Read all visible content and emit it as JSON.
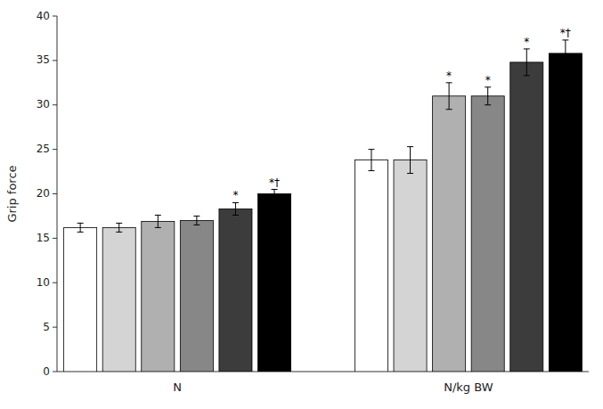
{
  "chart_data": {
    "type": "bar",
    "ylabel": "Grip force",
    "categories": [
      "N",
      "N/kg BW"
    ],
    "series": [
      {
        "color": "#ffffff",
        "values": [
          16.2,
          23.8
        ],
        "errors": [
          0.5,
          1.2
        ]
      },
      {
        "color": "#d4d4d4",
        "values": [
          16.2,
          23.8
        ],
        "errors": [
          0.5,
          1.5
        ]
      },
      {
        "color": "#b0b0b0",
        "values": [
          16.9,
          31.0
        ],
        "errors": [
          0.7,
          1.5
        ],
        "annotations": [
          null,
          "*"
        ]
      },
      {
        "color": "#878787",
        "values": [
          17.0,
          31.0
        ],
        "errors": [
          0.5,
          1.0
        ],
        "annotations": [
          null,
          "*"
        ]
      },
      {
        "color": "#3c3c3c",
        "values": [
          18.3,
          34.8
        ],
        "errors": [
          0.7,
          1.5
        ],
        "annotations": [
          "*",
          "*"
        ]
      },
      {
        "color": "#000000",
        "values": [
          20.0,
          35.8
        ],
        "errors": [
          0.5,
          1.5
        ],
        "annotations": [
          "*†",
          "*†"
        ]
      }
    ],
    "ylim": [
      0,
      40
    ],
    "yticks": [
      0,
      5,
      10,
      15,
      20,
      25,
      30,
      35,
      40
    ],
    "grid": false
  }
}
